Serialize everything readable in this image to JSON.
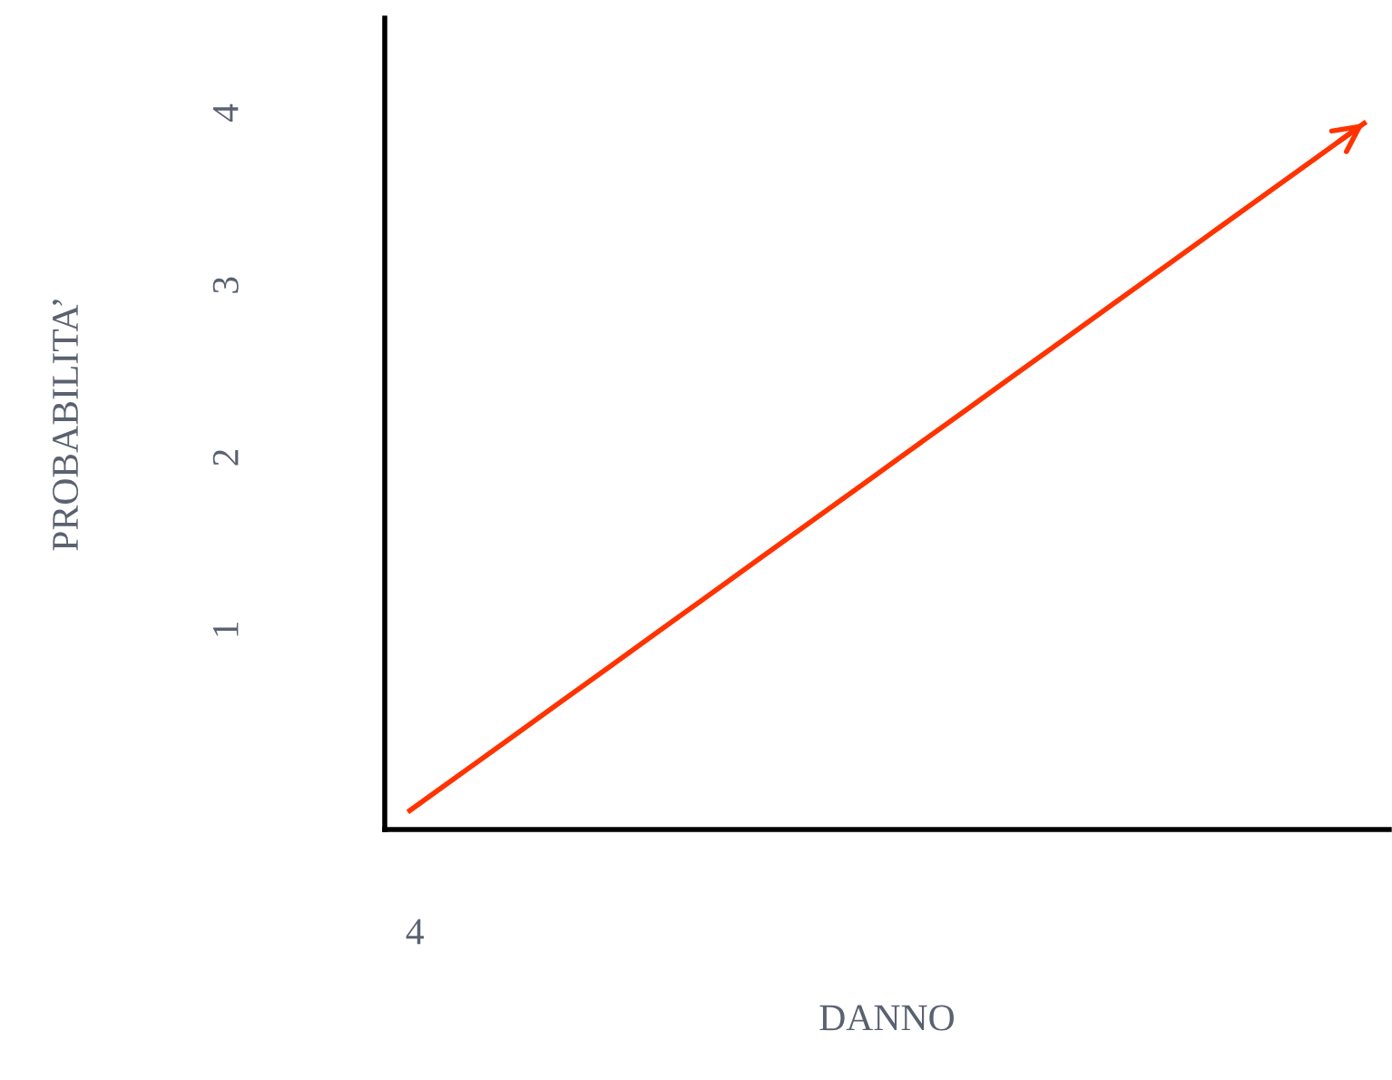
{
  "chart_data": {
    "type": "line",
    "xlabel": "DANNO",
    "ylabel": "PROBABILITA’",
    "categories": [
      null,
      null,
      null,
      null,
      null,
      null,
      null,
      null,
      null,
      null,
      null,
      null,
      null,
      null,
      null,
      null,
      null,
      null,
      null,
      null
    ],
    "series": [
      {
        "color": "#ff3300",
        "values": [
          -0.05,
          0.16,
          0.37,
          0.58,
          0.79,
          1.0,
          1.21,
          1.42,
          1.63,
          1.84,
          2.05,
          2.26,
          2.47,
          2.68,
          2.89,
          3.1,
          3.31,
          3.52,
          3.73,
          3.94
        ]
      }
    ],
    "ylim": [
      -0.16,
      4.55
    ],
    "yticks": [
      1,
      2,
      3,
      4
    ],
    "tick_labels": "y",
    "annotations": [
      "4"
    ],
    "grid": false,
    "legend": false,
    "marker": "none",
    "line_style": "solid"
  }
}
